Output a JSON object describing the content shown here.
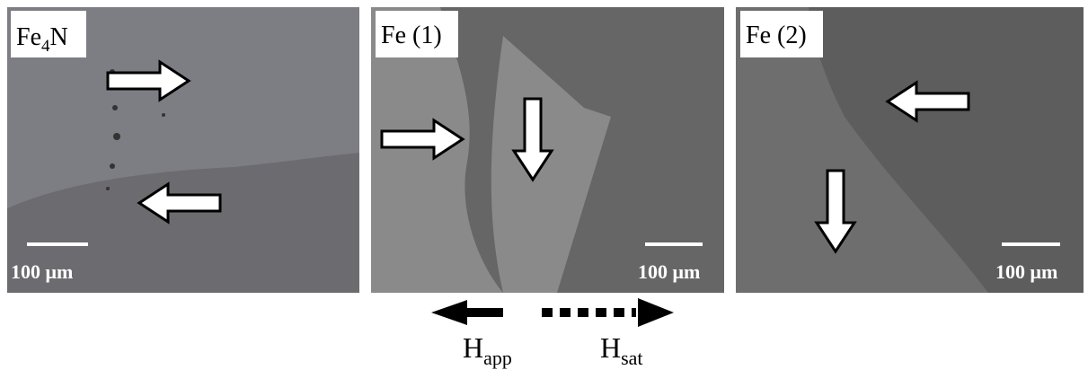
{
  "panels": [
    {
      "label": {
        "text": "Fe",
        "sub": "4",
        "tail": "N"
      },
      "scale": "100 μm"
    },
    {
      "label": {
        "text": "Fe (1)"
      },
      "scale": "100 μm"
    },
    {
      "label": {
        "text": "Fe (2)"
      },
      "scale": "100 μm"
    }
  ],
  "legend": {
    "applied": {
      "text": "H",
      "sub": "app"
    },
    "saturation": {
      "text": "H",
      "sub": "sat"
    }
  }
}
